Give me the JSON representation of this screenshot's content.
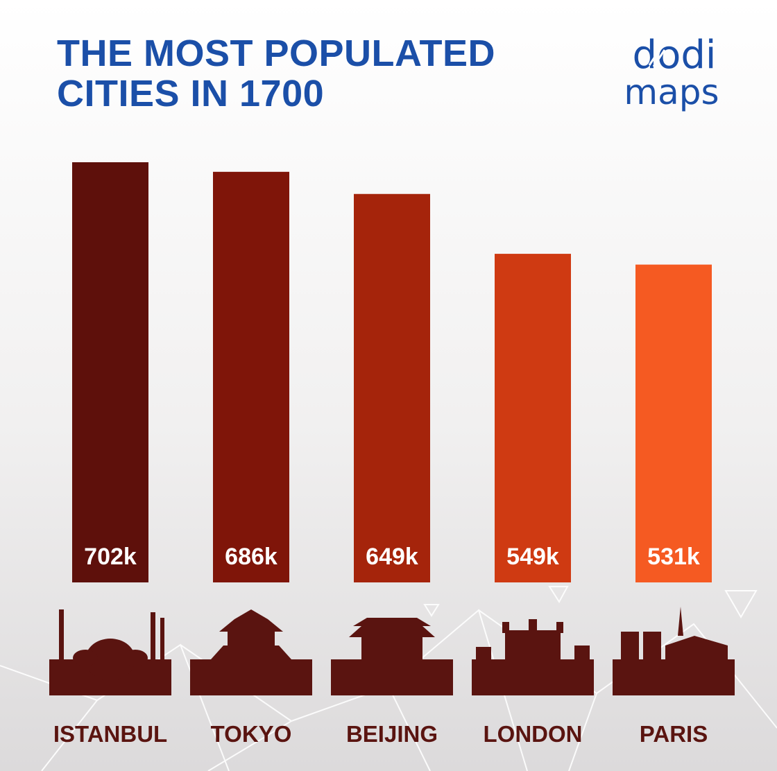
{
  "title": {
    "line1": "THE MOST POPULATED",
    "line2": "CITIES IN 1700"
  },
  "logo": {
    "line1": "dodi",
    "line2": "maps",
    "color": "#1b4fa8"
  },
  "chart_data": {
    "type": "bar",
    "categories": [
      "ISTANBUL",
      "TOKYO",
      "BEIJING",
      "LONDON",
      "PARIS"
    ],
    "values": [
      702,
      686,
      649,
      549,
      531
    ],
    "data_labels": [
      "702k",
      "686k",
      "649k",
      "549k",
      "531k"
    ],
    "colors": [
      "#5e100b",
      "#7f1509",
      "#a5240b",
      "#cf3a12",
      "#f55a22"
    ],
    "title": "THE MOST POPULATED CITIES IN 1700",
    "unit": "thousands",
    "grid": false,
    "axes_visible": false,
    "ylim": [
      0,
      702
    ]
  }
}
